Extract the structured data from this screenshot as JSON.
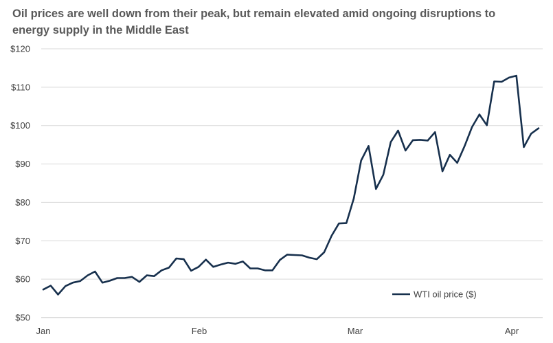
{
  "chart_data": {
    "type": "line",
    "title": "Oil prices are well down from their peak, but remain elevated amid ongoing disruptions to energy supply in the Middle East",
    "xlabel": "",
    "ylabel": "",
    "ylim": [
      50,
      120
    ],
    "y_ticks": [
      "$50",
      "$60",
      "$70",
      "$80",
      "$90",
      "$100",
      "$110",
      "$120"
    ],
    "x_ticks": [
      "Jan",
      "Feb",
      "Mar",
      "Apr"
    ],
    "grid": "horizontal",
    "legend_position": "bottom-right",
    "line_color": "#17304d",
    "series": [
      {
        "name": "WTI oil price ($)",
        "values": [
          57.3,
          58.3,
          56.0,
          58.2,
          59.1,
          59.5,
          61.0,
          62.0,
          59.1,
          59.6,
          60.3,
          60.3,
          60.6,
          59.3,
          61.0,
          60.8,
          62.3,
          63.0,
          65.4,
          65.2,
          62.2,
          63.2,
          65.1,
          63.2,
          63.8,
          64.3,
          64.0,
          64.6,
          62.8,
          62.8,
          62.3,
          62.3,
          65.0,
          66.4,
          66.3,
          66.2,
          65.6,
          65.2,
          67.0,
          71.3,
          74.5,
          74.6,
          81.0,
          90.9,
          94.7,
          83.5,
          87.2,
          95.7,
          98.7,
          93.5,
          96.2,
          96.3,
          96.1,
          98.3,
          88.1,
          92.4,
          90.3,
          94.7,
          99.6,
          102.9,
          100.1,
          111.5,
          111.4,
          112.5,
          113.0,
          94.4,
          97.9,
          99.3
        ]
      }
    ]
  }
}
